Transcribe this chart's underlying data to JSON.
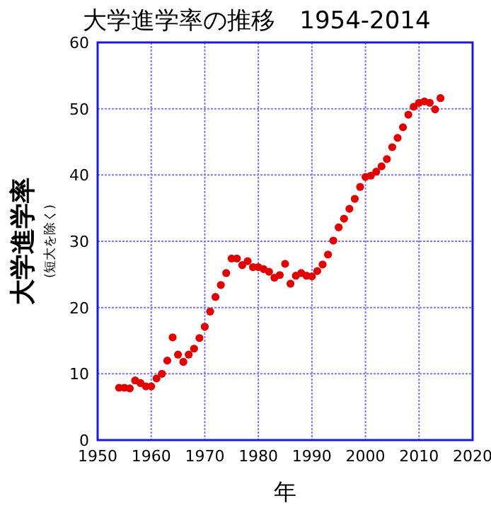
{
  "chart_data": {
    "type": "scatter",
    "title": "大学進学率の推移　1954-2014",
    "xlabel": "年",
    "ylabel": "大学進学率",
    "annotations": [
      "(短大を除く)"
    ],
    "x": [
      1954,
      1955,
      1956,
      1957,
      1958,
      1959,
      1960,
      1961,
      1962,
      1963,
      1964,
      1965,
      1966,
      1967,
      1968,
      1969,
      1970,
      1971,
      1972,
      1973,
      1974,
      1975,
      1976,
      1977,
      1978,
      1979,
      1980,
      1981,
      1982,
      1983,
      1984,
      1985,
      1986,
      1987,
      1988,
      1989,
      1990,
      1991,
      1992,
      1993,
      1994,
      1995,
      1996,
      1997,
      1998,
      1999,
      2000,
      2001,
      2002,
      2003,
      2004,
      2005,
      2006,
      2007,
      2008,
      2009,
      2010,
      2011,
      2012,
      2013,
      2014
    ],
    "series": [
      {
        "color": "#e00000",
        "values": [
          7.9,
          7.9,
          7.8,
          9.0,
          8.6,
          8.1,
          8.1,
          9.3,
          10.0,
          12.0,
          15.5,
          12.9,
          11.8,
          12.9,
          13.8,
          15.4,
          17.1,
          19.4,
          21.6,
          23.4,
          25.2,
          27.4,
          27.4,
          26.4,
          27.0,
          26.1,
          26.1,
          25.8,
          25.4,
          24.5,
          24.9,
          26.6,
          23.6,
          24.8,
          25.2,
          24.8,
          24.7,
          25.5,
          26.5,
          28.0,
          30.1,
          32.1,
          33.4,
          34.9,
          36.4,
          38.2,
          39.7,
          39.9,
          40.5,
          41.3,
          42.4,
          44.2,
          45.6,
          47.2,
          49.1,
          50.3,
          50.9,
          51.1,
          50.9,
          49.9,
          51.6
        ]
      }
    ],
    "xlim": [
      1950,
      2020
    ],
    "xticks": [
      1950,
      1960,
      1970,
      1980,
      1990,
      2000,
      2010,
      2020
    ],
    "ylim": [
      0,
      60
    ],
    "yticks": [
      0,
      10,
      20,
      30,
      40,
      50,
      60
    ],
    "grid": true,
    "marker": "circle"
  }
}
